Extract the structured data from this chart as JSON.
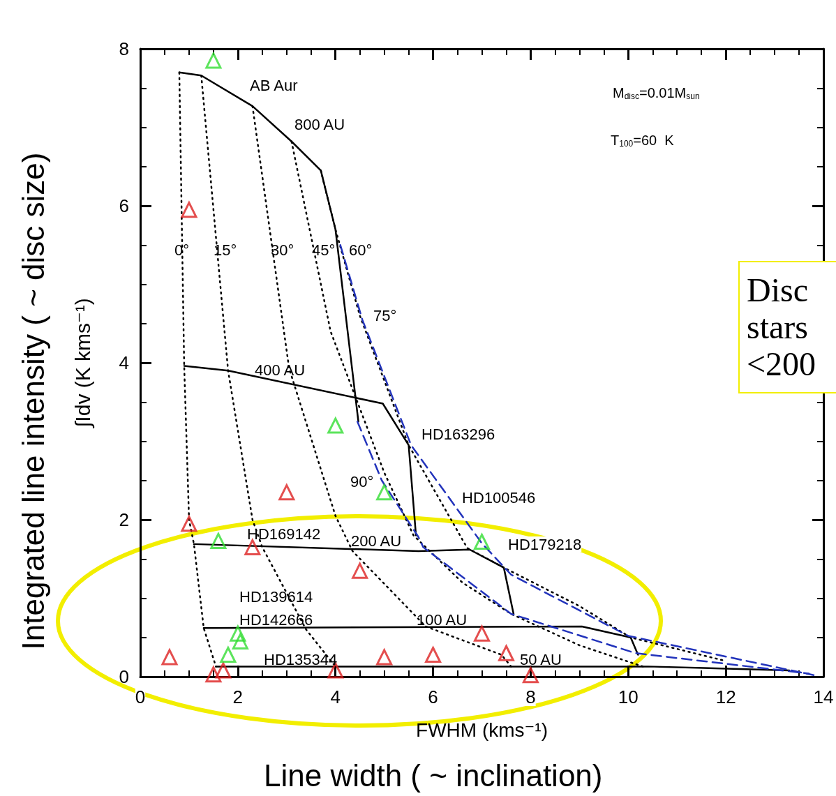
{
  "chart_data": {
    "type": "line",
    "xlabel": "FWHM (kms⁻¹)",
    "ylabel": "∫Idv (K kms⁻¹)",
    "xlim": [
      0,
      14
    ],
    "xticks": [
      0,
      2,
      4,
      6,
      8,
      10,
      12,
      14
    ],
    "ylim": [
      0,
      8
    ],
    "yticks": [
      0,
      2,
      4,
      6,
      8
    ],
    "annotations": [
      "M$_{disc}$=0.01M$_{sun}$",
      "T$_{100}$=60  K",
      "Disc stars <200",
      "Line width   ( ~ inclination)",
      "Integrated line intensity ( ~ disc size)",
      "AB Aur",
      "800 AU",
      "0°",
      "15°",
      "30°",
      "45°",
      "60°",
      "75°",
      "400 AU",
      "HD163296",
      "90°",
      "HD100546",
      "HD169142",
      "200 AU",
      "HD179218",
      "HD139614",
      "HD142666",
      "100 AU",
      "HD135344",
      "50 AU"
    ],
    "series": [
      {
        "color": "#000000",
        "line_style": "solid",
        "marker": "none",
        "x": [
          0.8,
          1.25,
          2.3,
          3.1,
          3.7,
          4.0,
          4.47
        ],
        "values": [
          7.7,
          7.66,
          7.27,
          6.82,
          6.45,
          5.7,
          3.25
        ]
      },
      {
        "color": "#000000",
        "line_style": "solid",
        "marker": "none",
        "x": [
          0.9,
          1.8,
          4.97,
          5.5,
          5.65
        ],
        "values": [
          3.96,
          3.9,
          3.48,
          2.95,
          1.8
        ]
      },
      {
        "color": "#000000",
        "line_style": "solid",
        "marker": "none",
        "x": [
          1.1,
          5.7,
          6.75,
          7.45,
          7.65
        ],
        "values": [
          1.69,
          1.6,
          1.62,
          1.39,
          0.8
        ]
      },
      {
        "color": "#000000",
        "line_style": "solid",
        "marker": "none",
        "x": [
          1.3,
          9.05,
          10.05,
          10.2
        ],
        "values": [
          0.62,
          0.64,
          0.5,
          0.28
        ]
      },
      {
        "color": "#000000",
        "line_style": "solid",
        "marker": "none",
        "x": [
          1.55,
          10.4,
          13.3
        ],
        "values": [
          0.13,
          0.13,
          0.08
        ]
      },
      {
        "color": "#000000",
        "line_style": "dotted",
        "marker": "none",
        "x": [
          0.8,
          0.9,
          1.0,
          1.1,
          1.3,
          1.55
        ],
        "values": [
          7.7,
          3.96,
          2.0,
          1.69,
          0.62,
          0.13
        ]
      },
      {
        "color": "#000000",
        "line_style": "dotted",
        "marker": "none",
        "x": [
          1.25,
          1.8,
          2.3,
          2.5,
          3.4,
          4.0
        ],
        "values": [
          7.66,
          3.9,
          2.0,
          1.65,
          0.6,
          0.13
        ]
      },
      {
        "color": "#000000",
        "line_style": "dotted",
        "marker": "none",
        "x": [
          2.3,
          3.05,
          4.0,
          4.35,
          5.1,
          5.85,
          7.4,
          7.6
        ],
        "values": [
          7.27,
          3.93,
          2.05,
          1.6,
          1.12,
          0.64,
          0.28,
          0.13
        ]
      },
      {
        "color": "#000000",
        "line_style": "dotted",
        "marker": "none",
        "x": [
          3.1,
          3.9,
          4.45,
          5.0,
          5.6,
          6.6,
          7.6,
          9.0,
          10.3
        ],
        "values": [
          6.82,
          4.4,
          3.5,
          2.6,
          1.8,
          1.2,
          0.8,
          0.4,
          0.13
        ]
      },
      {
        "color": "#000000",
        "line_style": "dotted",
        "marker": "none",
        "x": [
          3.7,
          4.0,
          4.5,
          5.5,
          6.7,
          7.45,
          9.0,
          10.05,
          12.0
        ],
        "values": [
          6.45,
          5.7,
          4.6,
          2.95,
          1.64,
          1.39,
          0.9,
          0.5,
          0.2
        ]
      },
      {
        "color": "#2233bb",
        "line_style": "dashed",
        "marker": "none",
        "x": [
          4.1,
          4.55,
          5.55,
          7.0,
          7.6,
          10.0,
          13.8
        ],
        "values": [
          5.5,
          4.55,
          2.95,
          1.7,
          1.3,
          0.52,
          0.02
        ]
      },
      {
        "color": "#2233bb",
        "line_style": "dashed",
        "marker": "none",
        "x": [
          4.45,
          4.95,
          5.7,
          5.8,
          7.6,
          10.15,
          13.7
        ],
        "values": [
          3.25,
          2.5,
          1.78,
          1.65,
          0.8,
          0.3,
          0.04
        ]
      },
      {
        "type": "scatter",
        "color": "#dd2222",
        "marker": "triangle",
        "x": [
          1.0,
          1.0,
          3.0,
          2.3,
          4.5,
          0.6,
          1.5,
          1.7,
          4.0,
          5.0,
          6.0,
          7.0,
          7.5,
          8.0
        ],
        "values": [
          5.95,
          1.95,
          2.35,
          1.65,
          1.35,
          0.25,
          0.03,
          0.08,
          0.08,
          0.25,
          0.28,
          0.55,
          0.3,
          0.02
        ]
      },
      {
        "type": "scatter",
        "color": "#33dd33",
        "marker": "triangle",
        "x": [
          1.5,
          4.0,
          5.0,
          7.0,
          1.6,
          2.0,
          2.05,
          1.8
        ],
        "values": [
          7.85,
          3.2,
          2.35,
          1.72,
          1.73,
          0.55,
          0.45,
          0.28
        ]
      }
    ]
  }
}
